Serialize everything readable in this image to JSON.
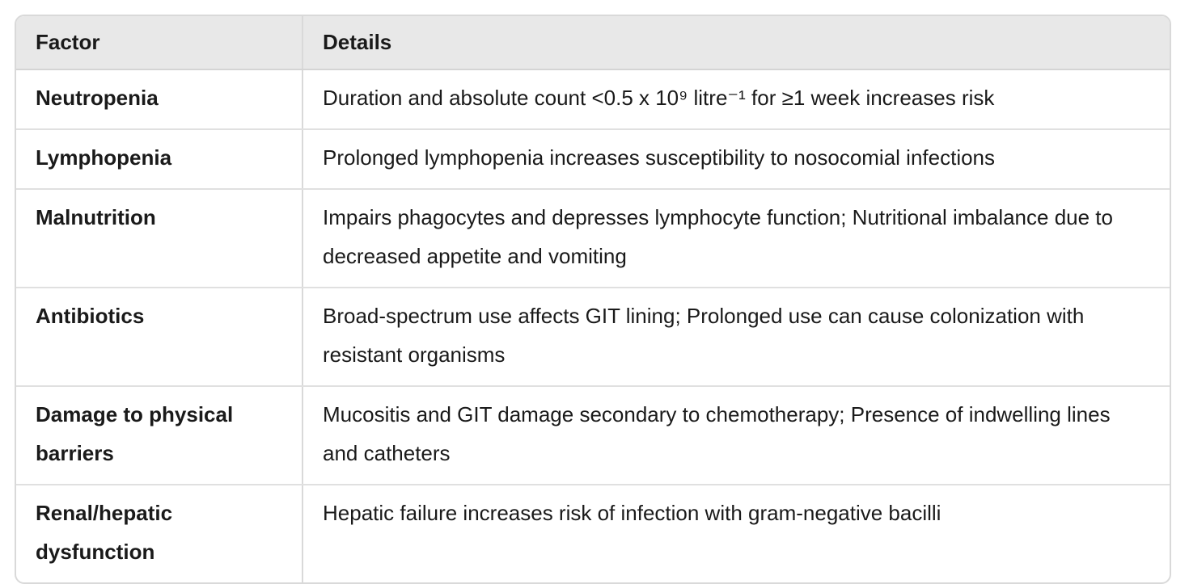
{
  "table": {
    "headers": {
      "factor": "Factor",
      "details": "Details"
    },
    "rows": [
      {
        "factor": "Neutropenia",
        "details": "Duration and absolute count <0.5 x 10⁹ litre⁻¹ for ≥1 week increases risk"
      },
      {
        "factor": "Lymphopenia",
        "details": "Prolonged lymphopenia increases susceptibility to nosocomial infections"
      },
      {
        "factor": "Malnutrition",
        "details": "Impairs phagocytes and depresses lymphocyte function; Nutritional imbalance due to decreased appetite and vomiting"
      },
      {
        "factor": "Antibiotics",
        "details": "Broad-spectrum use affects GIT lining; Prolonged use can cause colonization with resistant organisms"
      },
      {
        "factor": "Damage to physical barriers",
        "details": "Mucositis and GIT damage secondary to chemotherapy; Presence of indwelling lines and catheters"
      },
      {
        "factor": "Renal/hepatic dysfunction",
        "details": "Hepatic failure increases risk of infection with gram-negative bacilli"
      }
    ]
  },
  "colors": {
    "header_bg": "#e8e8e8",
    "border": "#d9d9d9",
    "text": "#1a1a1a"
  }
}
